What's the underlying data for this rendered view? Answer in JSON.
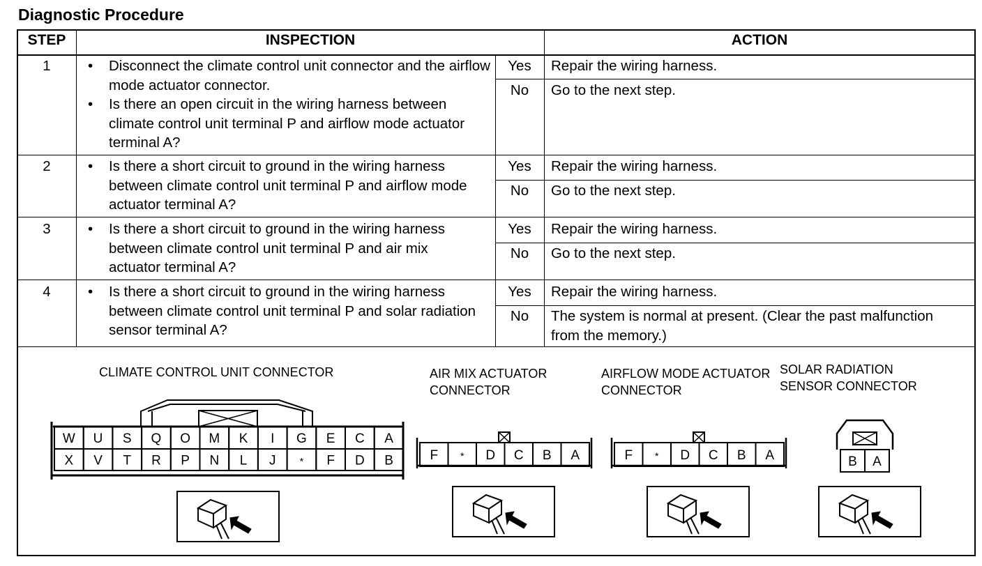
{
  "title": "Diagnostic Procedure",
  "headers": {
    "step": "STEP",
    "inspection": "INSPECTION",
    "action": "ACTION"
  },
  "steps": [
    {
      "step": "1",
      "inspection": [
        "Disconnect the climate control unit connector and the airflow mode actuator connector.",
        "Is there an open circuit in the wiring harness between climate control unit terminal P and airflow mode actuator terminal A?"
      ],
      "yes": "Yes",
      "yes_action": "Repair the wiring harness.",
      "no": "No",
      "no_action": "Go to the next step."
    },
    {
      "step": "2",
      "inspection": [
        "Is there a short circuit to ground in the wiring harness between climate control unit terminal P and airflow mode actuator terminal A?"
      ],
      "yes": "Yes",
      "yes_action": "Repair the wiring harness.",
      "no": "No",
      "no_action": "Go to the next step."
    },
    {
      "step": "3",
      "inspection": [
        "Is there a short circuit to ground in the wiring harness between climate control unit terminal P and air mix actuator terminal A?"
      ],
      "yes": "Yes",
      "yes_action": "Repair the wiring harness.",
      "no": "No",
      "no_action": "Go to the next step."
    },
    {
      "step": "4",
      "inspection": [
        "Is there a short circuit to ground in the wiring harness between climate control unit terminal P and solar radiation sensor terminal A?"
      ],
      "yes": "Yes",
      "yes_action": "Repair the wiring harness.",
      "no": "No",
      "no_action": "The system is normal at present. (Clear the past malfunction from the memory.)"
    }
  ],
  "connectors": {
    "ccu": {
      "label": "CLIMATE CONTROL UNIT CONNECTOR",
      "top": [
        "W",
        "U",
        "S",
        "Q",
        "O",
        "M",
        "K",
        "I",
        "G",
        "E",
        "C",
        "A"
      ],
      "bottom": [
        "X",
        "V",
        "T",
        "R",
        "P",
        "N",
        "L",
        "J",
        "*",
        "F",
        "D",
        "B"
      ]
    },
    "airmix": {
      "label": "AIR MIX ACTUATOR CONNECTOR",
      "pins": [
        "F",
        "*",
        "D",
        "C",
        "B",
        "A"
      ]
    },
    "airflow": {
      "label": "AIRFLOW MODE ACTUATOR CONNECTOR",
      "pins": [
        "F",
        "*",
        "D",
        "C",
        "B",
        "A"
      ]
    },
    "solar": {
      "label": "SOLAR RADIATION SENSOR CONNECTOR",
      "pins": [
        "B",
        "A"
      ]
    }
  }
}
